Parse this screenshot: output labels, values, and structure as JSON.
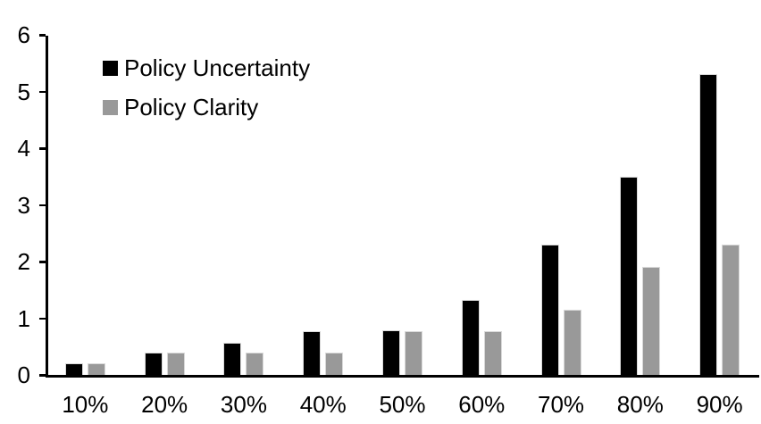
{
  "chart_data": {
    "type": "bar",
    "categories": [
      "10%",
      "20%",
      "30%",
      "40%",
      "50%",
      "60%",
      "70%",
      "80%",
      "90%"
    ],
    "series": [
      {
        "name": "Policy Uncertainty",
        "color": "#000000",
        "values": [
          0.2,
          0.4,
          0.57,
          0.77,
          0.78,
          1.33,
          2.3,
          3.5,
          5.3
        ]
      },
      {
        "name": "Policy Clarity",
        "color": "#999999",
        "values": [
          0.2,
          0.4,
          0.4,
          0.4,
          0.77,
          0.77,
          1.15,
          1.9,
          2.3
        ]
      }
    ],
    "ylim": [
      0,
      6
    ],
    "yticks": [
      "0",
      "1",
      "2",
      "3",
      "4",
      "5",
      "6"
    ],
    "grid": false,
    "legend_position": "upper-left-inside",
    "axis_color": "#000000",
    "bar_border_color": "#d9d9d9",
    "background_color": "#ffffff"
  }
}
